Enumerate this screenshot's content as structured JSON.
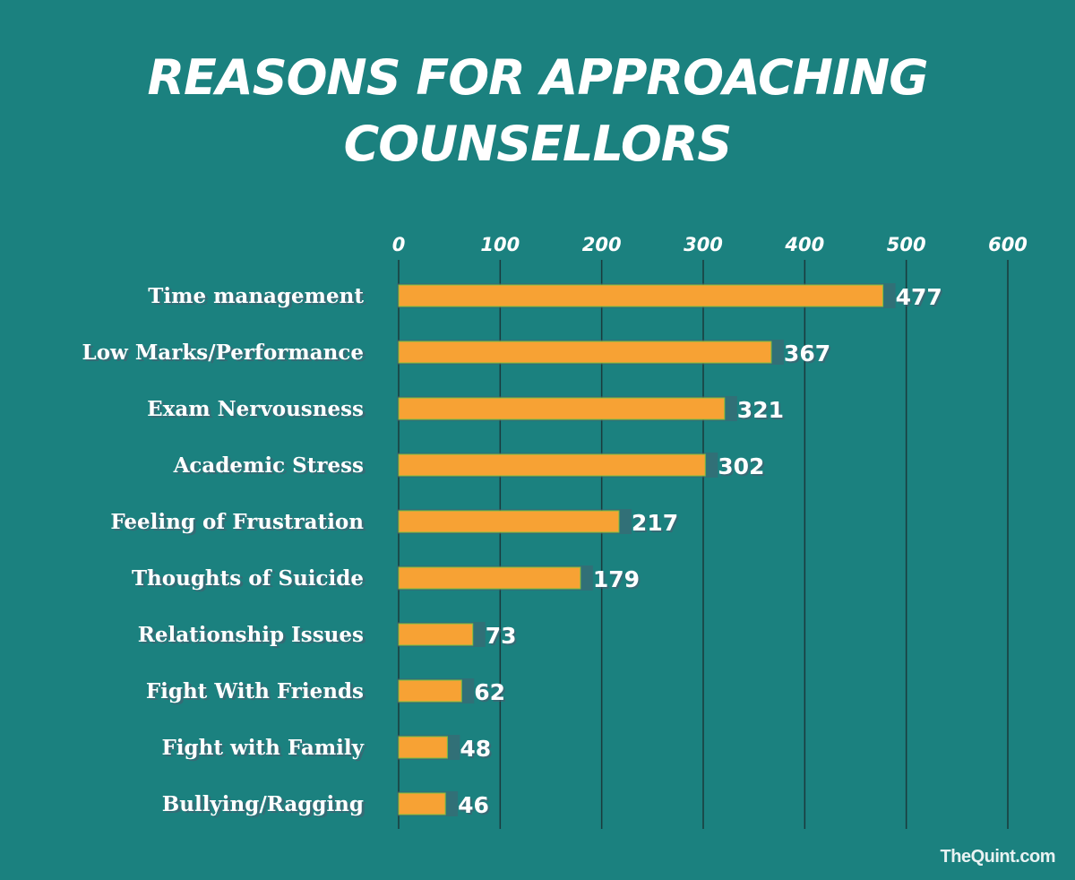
{
  "chart_data": {
    "type": "bar",
    "orientation": "horizontal",
    "title_lines": [
      "REASONS FOR APPROACHING",
      "COUNSELLORS"
    ],
    "categories": [
      "Time management",
      "Low Marks/Performance",
      "Exam Nervousness",
      "Academic Stress",
      "Feeling of Frustration",
      "Thoughts of Suicide",
      "Relationship Issues",
      "Fight With Friends",
      "Fight with Family",
      "Bullying/Ragging"
    ],
    "values": [
      477,
      367,
      321,
      302,
      217,
      179,
      73,
      62,
      48,
      46
    ],
    "data_labels": [
      "477",
      "367",
      "321",
      "302",
      "217",
      "179",
      "73",
      "62",
      "48",
      "46"
    ],
    "xlim": [
      0,
      600
    ],
    "x_ticks": [
      0,
      100,
      200,
      300,
      400,
      500,
      600
    ],
    "x_tick_labels": [
      "0",
      "100",
      "200",
      "300",
      "400",
      "500",
      "600"
    ],
    "x_axis_position": "top",
    "grid": "vertical",
    "legend": "none",
    "xlabel": "",
    "ylabel": "",
    "colors": {
      "background": "#1b817f",
      "bar": "#f7a234",
      "bar_edge": "#7cbf3f",
      "shadow": "#4d5a6e",
      "gridline": "#1a3a3c",
      "text": "#ffffff"
    }
  },
  "watermark": "TheQuint.com"
}
